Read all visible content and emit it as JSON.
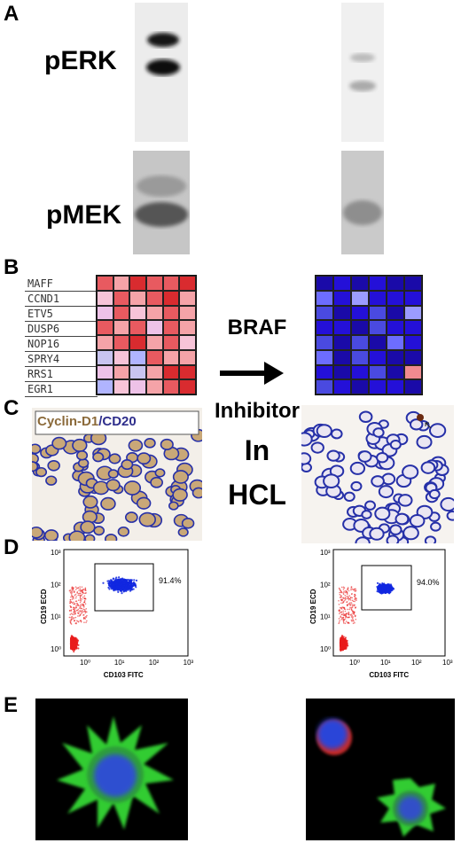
{
  "panels": {
    "A": {
      "letter": "A",
      "rows": [
        "pERK",
        "pMEK"
      ]
    },
    "B": {
      "letter": "B",
      "genes": [
        "MAFF",
        "CCND1",
        "ETV5",
        "DUSP6",
        "NOP16",
        "SPRY4",
        "RRS1",
        "EGR1"
      ]
    },
    "C": {
      "letter": "C",
      "stain_a": "Cyclin-D1",
      "stain_sep": "/",
      "stain_b": "CD20"
    },
    "D": {
      "letter": "D",
      "left_pct": "91.4%",
      "right_pct": "94.0%",
      "ylabel": "CD19 ECD",
      "xlabel": "CD103 FITC",
      "yticks": [
        "10³",
        "10²",
        "10¹",
        "10⁰"
      ],
      "xticks": [
        "10⁰",
        "10¹",
        "10²",
        "10³"
      ]
    },
    "E": {
      "letter": "E"
    }
  },
  "center": {
    "line1": "BRAF",
    "line2": "Inhibitor",
    "line3": "In",
    "line4": "HCL"
  },
  "colors": {
    "stain_a": "#8b6a3a",
    "stain_b": "#2e2e8c"
  }
}
